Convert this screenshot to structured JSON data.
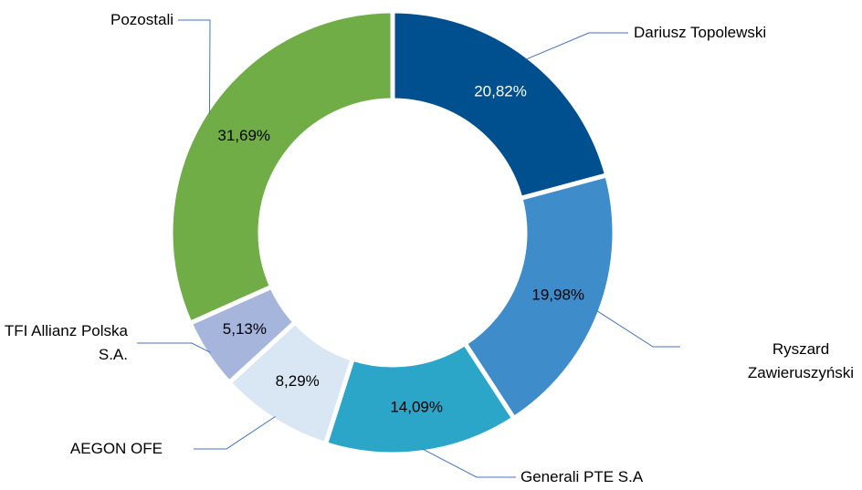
{
  "chart_data": {
    "type": "donut",
    "categories": [
      "Dariusz Topolewski",
      "Ryszard Zawieruszyński",
      "Generali PTE S.A",
      "AEGON OFE",
      "TFI Allianz Polska S.A.",
      "Pozostali"
    ],
    "values": [
      20.82,
      19.98,
      14.09,
      8.29,
      5.13,
      31.69
    ],
    "value_labels": [
      "20,82%",
      "19,98%",
      "14,09%",
      "8,29%",
      "5,13%",
      "31,69%"
    ],
    "colors": [
      "#00508f",
      "#3f8ccb",
      "#2ba6c9",
      "#d9e7f5",
      "#a6b5dc",
      "#70ad47"
    ]
  }
}
